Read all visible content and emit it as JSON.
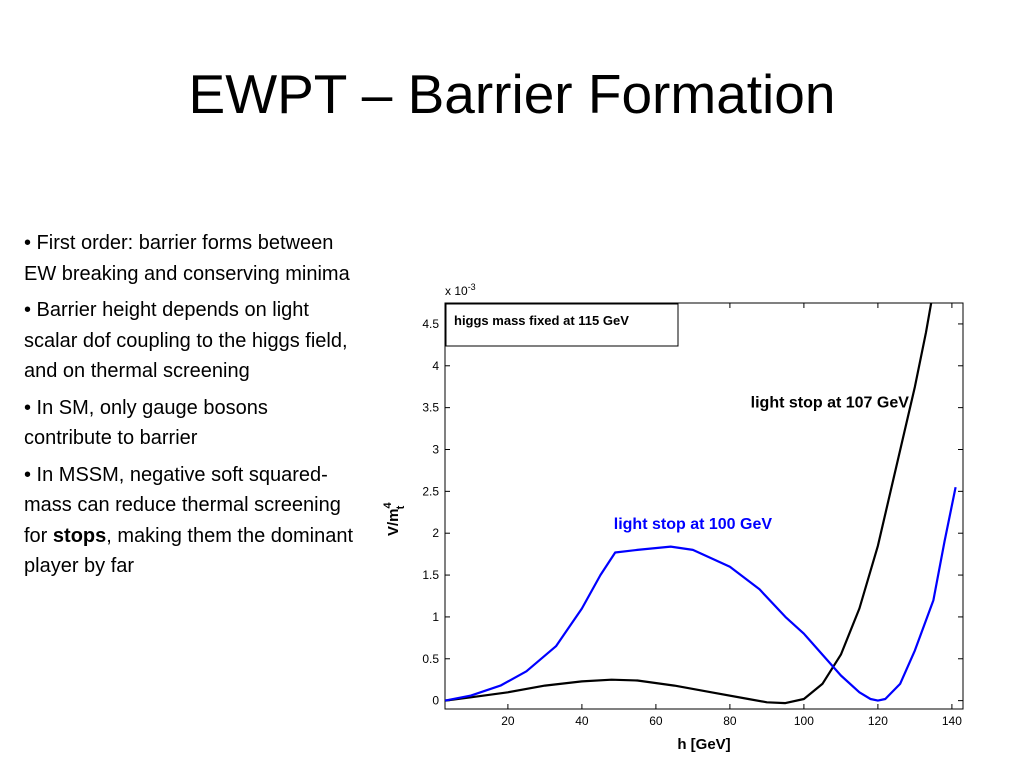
{
  "slide": {
    "title": "EWPT – Barrier Formation",
    "bullets": [
      {
        "text": "• First order: barrier forms between EW breaking and conserving minima"
      },
      {
        "text": "• Barrier height depends on light scalar dof coupling to the higgs field, and on thermal screening"
      },
      {
        "text": "• In SM, only gauge bosons contribute to barrier"
      },
      {
        "pre": "• In MSSM, negative soft squared-mass can reduce thermal screening for ",
        "bold": "stops",
        "post": ", making them the dominant player by far"
      }
    ]
  },
  "chart_data": {
    "type": "line",
    "xlabel": "h [GeV]",
    "ylabel": "V/m",
    "ylabel_sup": "4",
    "ylabel_sub": "t",
    "y_multiplier": "x 10",
    "y_multiplier_exp": "-3",
    "xlim": [
      3,
      143
    ],
    "ylim": [
      -0.1,
      4.75
    ],
    "xticks": [
      20,
      40,
      60,
      80,
      100,
      120,
      140
    ],
    "xtick_labels": [
      "20",
      "40",
      "60",
      "80",
      "100",
      "120",
      "140"
    ],
    "yticks": [
      0,
      0.5,
      1,
      1.5,
      2,
      2.5,
      3,
      3.5,
      4,
      4.5
    ],
    "ytick_labels": [
      "0",
      "0.5",
      "1",
      "1.5",
      "2",
      "2.5",
      "3",
      "3.5",
      "4",
      "4.5"
    ],
    "grid": false,
    "legend_box": "higgs mass fixed at 115 GeV",
    "series": [
      {
        "name": "light stop at 107 GeV",
        "color": "#000000",
        "x": [
          3,
          10,
          20,
          30,
          40,
          48,
          55,
          65,
          75,
          85,
          90,
          95,
          100,
          105,
          110,
          115,
          120,
          125,
          130,
          133,
          135,
          135.5
        ],
        "y": [
          0.0,
          0.04,
          0.1,
          0.18,
          0.23,
          0.25,
          0.24,
          0.18,
          0.1,
          0.02,
          -0.02,
          -0.03,
          0.02,
          0.2,
          0.55,
          1.1,
          1.85,
          2.8,
          3.75,
          4.4,
          4.9,
          5.2
        ]
      },
      {
        "name": "light stop at 100 GeV",
        "color": "#0000ff",
        "x": [
          3,
          10,
          18,
          25,
          33,
          40,
          45,
          49,
          55,
          64,
          70,
          80,
          88,
          95,
          100,
          105,
          110,
          115,
          118,
          120,
          122,
          126,
          130,
          135,
          138,
          141
        ],
        "y": [
          0.0,
          0.06,
          0.18,
          0.35,
          0.65,
          1.1,
          1.5,
          1.77,
          1.8,
          1.84,
          1.8,
          1.6,
          1.33,
          1.0,
          0.8,
          0.55,
          0.3,
          0.1,
          0.02,
          0.0,
          0.02,
          0.2,
          0.6,
          1.2,
          1.9,
          2.55
        ]
      }
    ],
    "annotations": [
      {
        "text": "light stop at 107 GeV",
        "color": "#000000",
        "x": 107,
        "y": 3.5
      },
      {
        "text": "light stop at 100 GeV",
        "color": "#0000ff",
        "x": 70,
        "y": 2.05
      }
    ]
  }
}
